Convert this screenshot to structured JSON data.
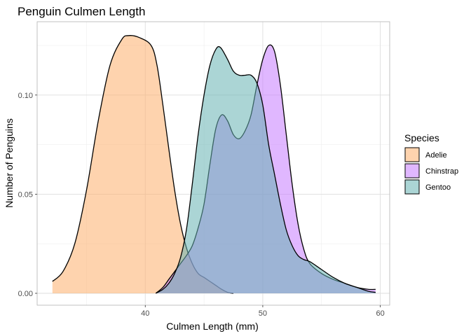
{
  "chart_data": {
    "type": "area",
    "title": "Penguin Culmen Length",
    "xlabel": "Culmen Length (mm)",
    "ylabel": "Number of Penguins",
    "xlim": [
      30.8,
      60.8
    ],
    "ylim": [
      -0.006,
      0.137
    ],
    "x_ticks": [
      40,
      50,
      60
    ],
    "x_tick_labels": [
      "40",
      "50",
      "60"
    ],
    "y_ticks": [
      0,
      0.05,
      0.1
    ],
    "y_tick_labels": [
      "0.00",
      "0.05",
      "0.10"
    ],
    "grid": true,
    "legend": {
      "title": "Species",
      "position": "right"
    },
    "series": [
      {
        "name": "Adelie",
        "color": "#FDAE6B",
        "points": [
          [
            32.1,
            0.006
          ],
          [
            33.0,
            0.011
          ],
          [
            34.0,
            0.025
          ],
          [
            35.0,
            0.052
          ],
          [
            36.0,
            0.087
          ],
          [
            37.0,
            0.115
          ],
          [
            38.0,
            0.128
          ],
          [
            38.6,
            0.13
          ],
          [
            39.5,
            0.129
          ],
          [
            40.5,
            0.125
          ],
          [
            41.0,
            0.115
          ],
          [
            41.5,
            0.095
          ],
          [
            42.0,
            0.073
          ],
          [
            42.5,
            0.052
          ],
          [
            43.0,
            0.035
          ],
          [
            43.5,
            0.023
          ],
          [
            44.0,
            0.015
          ],
          [
            44.5,
            0.01
          ],
          [
            45.0,
            0.008
          ],
          [
            45.5,
            0.006
          ],
          [
            46.0,
            0.004
          ],
          [
            46.5,
            0.002
          ],
          [
            47.0,
            0.0005
          ],
          [
            47.5,
            0.0
          ]
        ]
      },
      {
        "name": "Chinstrap",
        "color": "#C77CFF",
        "points": [
          [
            40.9,
            0.0
          ],
          [
            41.5,
            0.003
          ],
          [
            42.0,
            0.007
          ],
          [
            42.5,
            0.011
          ],
          [
            43.0,
            0.015
          ],
          [
            43.5,
            0.019
          ],
          [
            44.0,
            0.024
          ],
          [
            44.5,
            0.033
          ],
          [
            45.0,
            0.045
          ],
          [
            45.5,
            0.065
          ],
          [
            46.0,
            0.083
          ],
          [
            46.5,
            0.09
          ],
          [
            47.0,
            0.087
          ],
          [
            47.5,
            0.08
          ],
          [
            48.0,
            0.078
          ],
          [
            48.5,
            0.082
          ],
          [
            49.0,
            0.09
          ],
          [
            49.5,
            0.105
          ],
          [
            50.0,
            0.118
          ],
          [
            50.5,
            0.125
          ],
          [
            51.0,
            0.122
          ],
          [
            51.5,
            0.105
          ],
          [
            52.0,
            0.08
          ],
          [
            52.5,
            0.055
          ],
          [
            53.0,
            0.035
          ],
          [
            53.5,
            0.022
          ],
          [
            54.0,
            0.015
          ],
          [
            55.0,
            0.01
          ],
          [
            56.0,
            0.007
          ],
          [
            57.0,
            0.005
          ],
          [
            58.0,
            0.003
          ],
          [
            59.0,
            0.002
          ],
          [
            59.6,
            0.002
          ]
        ]
      },
      {
        "name": "Gentoo",
        "color": "#66B2B2",
        "points": [
          [
            40.9,
            0.0
          ],
          [
            41.5,
            0.002
          ],
          [
            42.0,
            0.005
          ],
          [
            42.5,
            0.01
          ],
          [
            43.0,
            0.018
          ],
          [
            43.5,
            0.032
          ],
          [
            44.0,
            0.055
          ],
          [
            44.5,
            0.08
          ],
          [
            45.0,
            0.1
          ],
          [
            45.5,
            0.115
          ],
          [
            46.0,
            0.123
          ],
          [
            46.4,
            0.124
          ],
          [
            47.0,
            0.118
          ],
          [
            47.5,
            0.112
          ],
          [
            48.0,
            0.11
          ],
          [
            48.5,
            0.11
          ],
          [
            49.0,
            0.11
          ],
          [
            49.5,
            0.106
          ],
          [
            50.0,
            0.095
          ],
          [
            50.5,
            0.075
          ],
          [
            51.0,
            0.06
          ],
          [
            51.5,
            0.045
          ],
          [
            52.0,
            0.032
          ],
          [
            52.5,
            0.024
          ],
          [
            53.0,
            0.019
          ],
          [
            53.5,
            0.017
          ],
          [
            54.0,
            0.016
          ],
          [
            55.0,
            0.012
          ],
          [
            56.0,
            0.008
          ],
          [
            57.0,
            0.005
          ],
          [
            58.0,
            0.003
          ],
          [
            59.0,
            0.001
          ],
          [
            59.6,
            0.0005
          ]
        ]
      }
    ]
  }
}
